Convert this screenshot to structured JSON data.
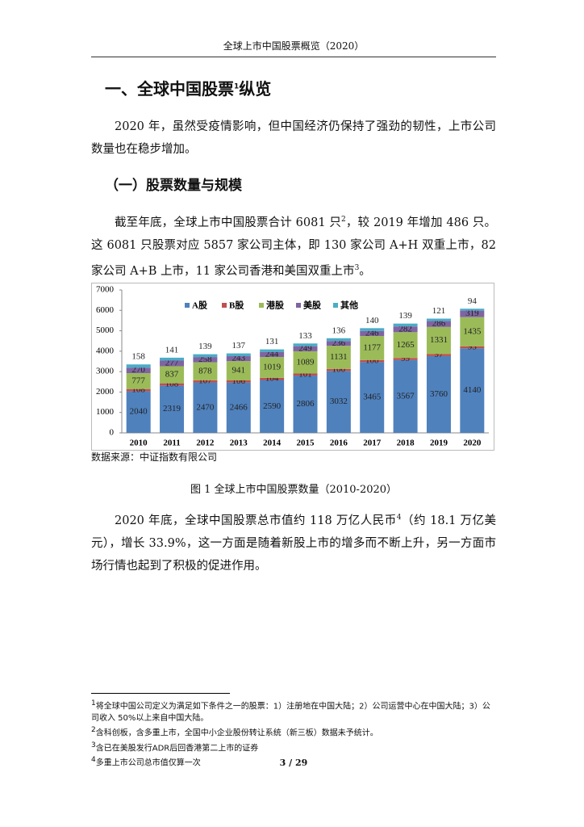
{
  "header": "全球上市中国股票概览（2020）",
  "heading": [
    {
      "text": "一、全球中国股票"
    },
    {
      "sup": "1"
    },
    {
      "text": "纵览"
    }
  ],
  "paragraphs": [
    [
      {
        "text": "2020 年，虽然受疫情影响，但中国经济仍保持了强劲的韧性，上市公司数量也在稳步增加。"
      }
    ],
    [
      {
        "text": "截至年底，全球上市中国股票合计 6081 只"
      },
      {
        "sup": "2"
      },
      {
        "text": "，较 2019 年增加 486 只。这 6081 只股票对应 5857 家公司主体，即 130 家公司 A+H 双重上市，82 家公司 A+B 上市，11 家公司香港和美国双重上市"
      },
      {
        "sup": "3"
      },
      {
        "text": "。"
      }
    ],
    [
      {
        "text": "2020 年底，全球中国股票总市值约 118 万亿人民币"
      },
      {
        "sup": "4"
      },
      {
        "text": "（约 18.1 万亿美元），增长 33.9%，这一方面是随着新股上市的增多而不断上升，另一方面市场行情也起到了积极的促进作用。"
      }
    ]
  ],
  "subheading": "（一）股票数量与规模",
  "chart_data": {
    "type": "bar",
    "stacked": true,
    "categories": [
      "2010",
      "2011",
      "2012",
      "2013",
      "2014",
      "2015",
      "2016",
      "2017",
      "2018",
      "2019",
      "2020"
    ],
    "series": [
      {
        "name": "A股",
        "color": "#4f81bd",
        "values": [
          2040,
          2319,
          2470,
          2466,
          2590,
          2806,
          3032,
          3465,
          3567,
          3760,
          4140
        ]
      },
      {
        "name": "B股",
        "color": "#c0504d",
        "values": [
          108,
          108,
          107,
          106,
          104,
          101,
          100,
          100,
          99,
          97,
          93
        ]
      },
      {
        "name": "港股",
        "color": "#9bbb59",
        "values": [
          777,
          837,
          878,
          941,
          1019,
          1089,
          1131,
          1177,
          1265,
          1331,
          1435
        ]
      },
      {
        "name": "美股",
        "color": "#8064a2",
        "values": [
          270,
          277,
          258,
          243,
          244,
          249,
          236,
          246,
          282,
          286,
          319
        ]
      },
      {
        "name": "其他",
        "color": "#4bacc6",
        "values": [
          158,
          141,
          139,
          137,
          131,
          133,
          136,
          140,
          139,
          121,
          94
        ]
      }
    ],
    "ylim": [
      0,
      7000
    ],
    "yticks": [
      0,
      1000,
      2000,
      3000,
      4000,
      5000,
      6000,
      7000
    ],
    "legend": "top"
  },
  "source": "数据来源：中证指数有限公司",
  "caption": "图 1 全球上市中国股票数量（2010-2020）",
  "footnotes": [
    {
      "marker": "1",
      "text": "将全球中国公司定义为满足如下条件之一的股票：1）注册地在中国大陆；2）公司运营中心在中国大陆；3）公司收入 50%以上来自中国大陆。"
    },
    {
      "marker": "2",
      "text": "含科创板，含多重上市，全国中小企业股份转让系统（新三板）数据未予统计。"
    },
    {
      "marker": "3",
      "text": "含已在美股发行ADR后回香港第二上市的证券"
    },
    {
      "marker": "4",
      "text": "多重上市公司总市值仅算一次"
    }
  ],
  "page_number": "3 / 29"
}
